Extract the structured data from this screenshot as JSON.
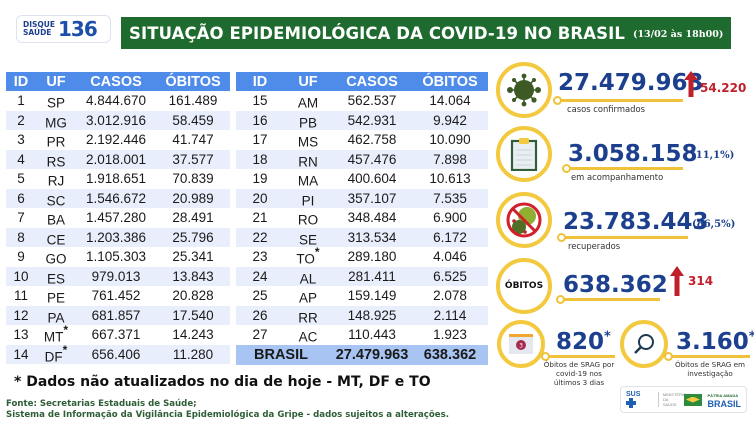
{
  "header": {
    "hotline_label": "DISQUE SAÚDE",
    "hotline_label_line1": "DISQUE",
    "hotline_label_line2": "SAÚDE",
    "hotline_number": "136",
    "title": "SITUAÇÃO EPIDEMIOLÓGICA DA COVID-19 NO BRASIL",
    "date": "(13/02 às 18h00)"
  },
  "colors": {
    "title_bg": "#1f6b2f",
    "table_header_bg": "#4f8be8",
    "table_stripe": "#e8eefb",
    "total_row_bg": "#a8c4f2",
    "stat_number": "#1c3f8e",
    "accent_ring": "#f3c93f",
    "increase_red": "#c0202a"
  },
  "table": {
    "columns": [
      "ID",
      "UF",
      "CASOS",
      "ÓBITOS"
    ],
    "left_rows": [
      {
        "id": "1",
        "uf": "SP",
        "star": "",
        "casos": "4.844.670",
        "obitos": "161.489"
      },
      {
        "id": "2",
        "uf": "MG",
        "star": "",
        "casos": "3.012.916",
        "obitos": "58.459"
      },
      {
        "id": "3",
        "uf": "PR",
        "star": "",
        "casos": "2.192.446",
        "obitos": "41.747"
      },
      {
        "id": "4",
        "uf": "RS",
        "star": "",
        "casos": "2.018.001",
        "obitos": "37.577"
      },
      {
        "id": "5",
        "uf": "RJ",
        "star": "",
        "casos": "1.918.651",
        "obitos": "70.839"
      },
      {
        "id": "6",
        "uf": "SC",
        "star": "",
        "casos": "1.546.672",
        "obitos": "20.989"
      },
      {
        "id": "7",
        "uf": "BA",
        "star": "",
        "casos": "1.457.280",
        "obitos": "28.491"
      },
      {
        "id": "8",
        "uf": "CE",
        "star": "",
        "casos": "1.203.386",
        "obitos": "25.796"
      },
      {
        "id": "9",
        "uf": "GO",
        "star": "",
        "casos": "1.105.303",
        "obitos": "25.341"
      },
      {
        "id": "10",
        "uf": "ES",
        "star": "",
        "casos": "979.013",
        "obitos": "13.843"
      },
      {
        "id": "11",
        "uf": "PE",
        "star": "",
        "casos": "761.452",
        "obitos": "20.828"
      },
      {
        "id": "12",
        "uf": "PA",
        "star": "",
        "casos": "681.857",
        "obitos": "17.540"
      },
      {
        "id": "13",
        "uf": "MT",
        "star": "*",
        "casos": "667.371",
        "obitos": "14.243"
      },
      {
        "id": "14",
        "uf": "DF",
        "star": "*",
        "casos": "656.406",
        "obitos": "11.280"
      }
    ],
    "right_rows": [
      {
        "id": "15",
        "uf": "AM",
        "star": "",
        "casos": "562.537",
        "obitos": "14.064"
      },
      {
        "id": "16",
        "uf": "PB",
        "star": "",
        "casos": "542.931",
        "obitos": "9.942"
      },
      {
        "id": "17",
        "uf": "MS",
        "star": "",
        "casos": "462.758",
        "obitos": "10.090"
      },
      {
        "id": "18",
        "uf": "RN",
        "star": "",
        "casos": "457.476",
        "obitos": "7.898"
      },
      {
        "id": "19",
        "uf": "MA",
        "star": "",
        "casos": "400.604",
        "obitos": "10.613"
      },
      {
        "id": "20",
        "uf": "PI",
        "star": "",
        "casos": "357.107",
        "obitos": "7.535"
      },
      {
        "id": "21",
        "uf": "RO",
        "star": "",
        "casos": "348.484",
        "obitos": "6.900"
      },
      {
        "id": "22",
        "uf": "SE",
        "star": "",
        "casos": "313.534",
        "obitos": "6.172"
      },
      {
        "id": "23",
        "uf": "TO",
        "star": "*",
        "casos": "289.180",
        "obitos": "4.046"
      },
      {
        "id": "24",
        "uf": "AL",
        "star": "",
        "casos": "281.411",
        "obitos": "6.525"
      },
      {
        "id": "25",
        "uf": "AP",
        "star": "",
        "casos": "159.149",
        "obitos": "2.078"
      },
      {
        "id": "26",
        "uf": "RR",
        "star": "",
        "casos": "148.925",
        "obitos": "2.114"
      },
      {
        "id": "27",
        "uf": "AC",
        "star": "",
        "casos": "110.443",
        "obitos": "1.923"
      }
    ],
    "total": {
      "label": "BRASIL",
      "casos": "27.479.963",
      "obitos": "638.362"
    }
  },
  "footnote": "* Dados não atualizados no dia de hoje - MT, DF e TO",
  "source": {
    "line1": "Fonte: Secretarias Estaduais de Saúde;",
    "line2": "Sistema de Informação da Vigilância Epidemiológica da Gripe - dados sujeitos a alterações."
  },
  "stats": {
    "confirmed": {
      "icon": "virus-icon",
      "value": "27.479.963",
      "delta": "54.220",
      "caption": "casos confirmados"
    },
    "monitoring": {
      "icon": "clipboard-icon",
      "value": "3.058.158",
      "pct": "(11,1%)",
      "caption": "em acompanhamento"
    },
    "recovered": {
      "icon": "no-virus-icon",
      "value": "23.783.443",
      "pct": "(86,5%)",
      "caption": "recuperados"
    },
    "deaths": {
      "icon_label": "ÓBITOS",
      "value": "638.362",
      "delta": "314"
    },
    "srag_recent": {
      "icon": "calendar-icon",
      "calendar_number": "3",
      "value": "820",
      "star": "*",
      "caption": "Óbitos de SRAG por covid-19 nos últimos 3 dias"
    },
    "srag_investigation": {
      "icon": "magnifier-icon",
      "value": "3.160",
      "star": "*",
      "caption": "Óbitos de SRAG em investigação"
    }
  },
  "logos": {
    "sus": "SUS",
    "ministry": "MINISTÉRIO DA SAÚDE",
    "brasil_top": "PÁTRIA AMADA",
    "brasil": "BRASIL",
    "brasil_sub": "GOVERNO FEDERAL"
  }
}
